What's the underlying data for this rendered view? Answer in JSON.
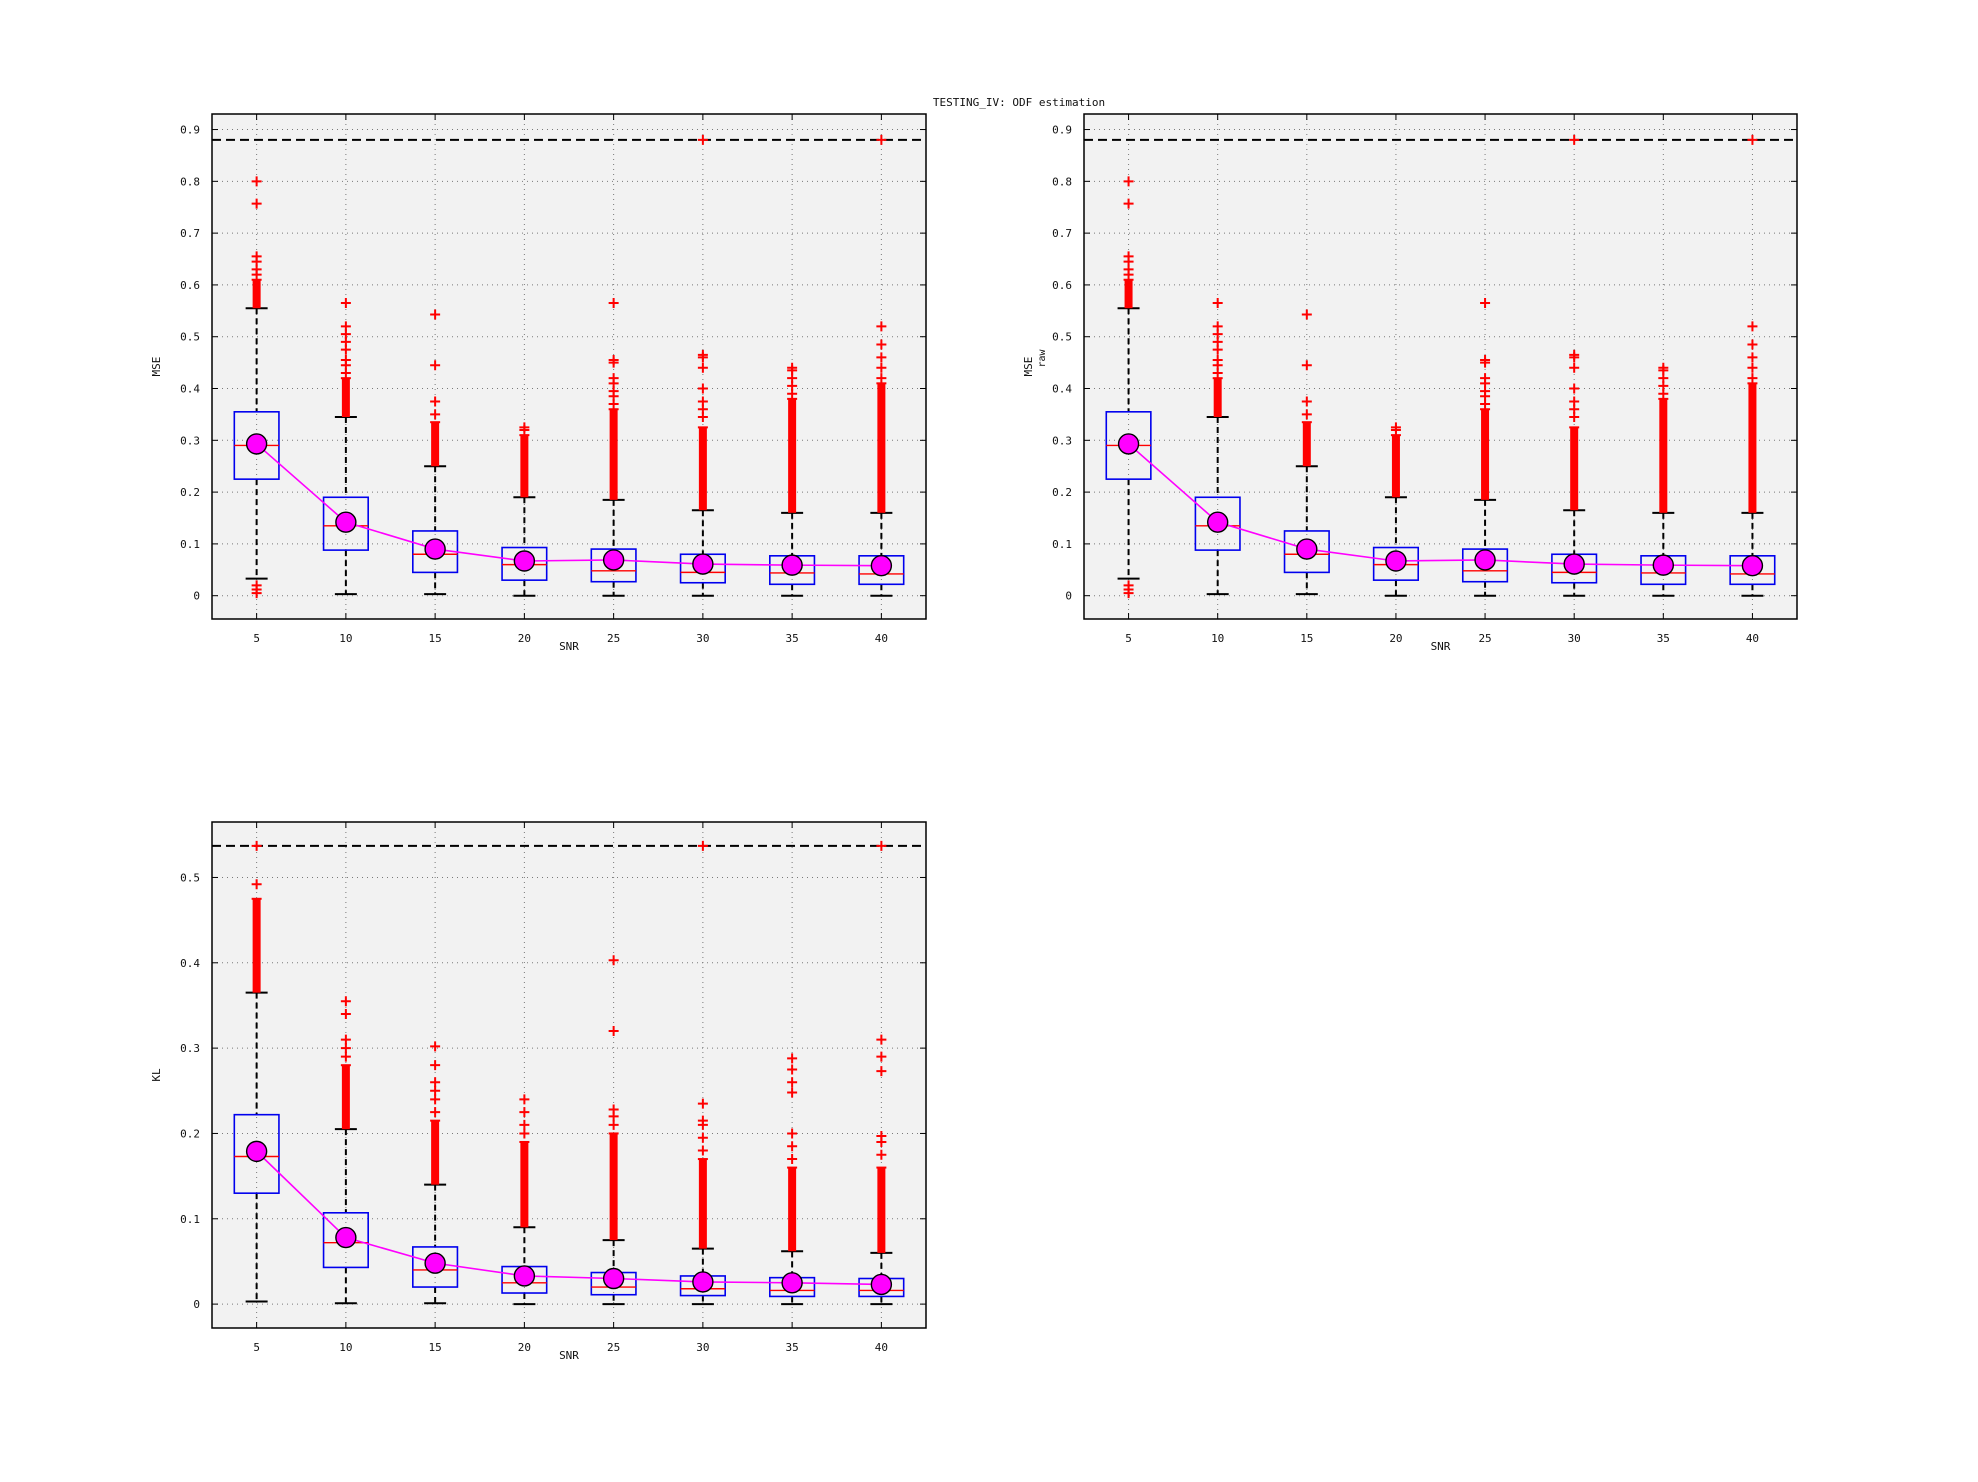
{
  "figure": {
    "title": "TESTING_IV: ODF estimation"
  },
  "chart_data": [
    {
      "type": "box",
      "xlabel": "SNR",
      "ylabel": "MSE",
      "ylabel_sub": "",
      "ylim": [
        -0.045,
        0.93
      ],
      "yticks": [
        0,
        0.1,
        0.2,
        0.3,
        0.4,
        0.5,
        0.6,
        0.7,
        0.8,
        0.9
      ],
      "ytick_labels": [
        "0",
        "0.1",
        "0.2",
        "0.3",
        "0.4",
        "0.5",
        "0.6",
        "0.7",
        "0.8",
        "0.9"
      ],
      "reference_line": 0.88,
      "grid": true,
      "categories": [
        "5",
        "10",
        "15",
        "20",
        "25",
        "30",
        "35",
        "40"
      ],
      "boxes": [
        {
          "min": 0.033,
          "q1": 0.225,
          "median": 0.29,
          "q3": 0.355,
          "max": 0.555,
          "mean": 0.293
        },
        {
          "min": 0.003,
          "q1": 0.088,
          "median": 0.135,
          "q3": 0.19,
          "max": 0.345,
          "mean": 0.142
        },
        {
          "min": 0.003,
          "q1": 0.045,
          "median": 0.08,
          "q3": 0.125,
          "max": 0.25,
          "mean": 0.09
        },
        {
          "min": 0.0,
          "q1": 0.03,
          "median": 0.06,
          "q3": 0.093,
          "max": 0.19,
          "mean": 0.067
        },
        {
          "min": 0.0,
          "q1": 0.027,
          "median": 0.048,
          "q3": 0.09,
          "max": 0.185,
          "mean": 0.069
        },
        {
          "min": 0.0,
          "q1": 0.025,
          "median": 0.045,
          "q3": 0.08,
          "max": 0.165,
          "mean": 0.061
        },
        {
          "min": 0.0,
          "q1": 0.022,
          "median": 0.044,
          "q3": 0.077,
          "max": 0.16,
          "mean": 0.059
        },
        {
          "min": 0.0,
          "q1": 0.022,
          "median": 0.042,
          "q3": 0.077,
          "max": 0.16,
          "mean": 0.058
        }
      ],
      "outliers": [
        {
          "dense": [
            [
              0.555,
              0.61
            ]
          ],
          "points": [
            0.005,
            0.012,
            0.02,
            0.62,
            0.63,
            0.645,
            0.655,
            0.757,
            0.8
          ]
        },
        {
          "dense": [
            [
              0.345,
              0.42
            ]
          ],
          "points": [
            0.43,
            0.445,
            0.455,
            0.475,
            0.49,
            0.505,
            0.52,
            0.565
          ]
        },
        {
          "dense": [
            [
              0.25,
              0.335
            ]
          ],
          "points": [
            0.35,
            0.375,
            0.445,
            0.543
          ]
        },
        {
          "dense": [
            [
              0.19,
              0.31
            ]
          ],
          "points": [
            0.32,
            0.325
          ]
        },
        {
          "dense": [
            [
              0.185,
              0.36
            ]
          ],
          "points": [
            0.37,
            0.385,
            0.395,
            0.41,
            0.42,
            0.45,
            0.455,
            0.565
          ]
        },
        {
          "dense": [
            [
              0.165,
              0.325
            ]
          ],
          "points": [
            0.345,
            0.36,
            0.375,
            0.4,
            0.44,
            0.46,
            0.465,
            0.88
          ]
        },
        {
          "dense": [
            [
              0.16,
              0.38
            ]
          ],
          "points": [
            0.39,
            0.405,
            0.42,
            0.435,
            0.44
          ]
        },
        {
          "dense": [
            [
              0.16,
              0.41
            ]
          ],
          "points": [
            0.42,
            0.44,
            0.46,
            0.485,
            0.52,
            0.88
          ]
        }
      ]
    },
    {
      "type": "box",
      "xlabel": "SNR",
      "ylabel": "MSE",
      "ylabel_sub": "raw",
      "ylim": [
        -0.045,
        0.93
      ],
      "yticks": [
        0,
        0.1,
        0.2,
        0.3,
        0.4,
        0.5,
        0.6,
        0.7,
        0.8,
        0.9
      ],
      "ytick_labels": [
        "0",
        "0.1",
        "0.2",
        "0.3",
        "0.4",
        "0.5",
        "0.6",
        "0.7",
        "0.8",
        "0.9"
      ],
      "reference_line": 0.88,
      "grid": true,
      "categories": [
        "5",
        "10",
        "15",
        "20",
        "25",
        "30",
        "35",
        "40"
      ],
      "boxes": [
        {
          "min": 0.033,
          "q1": 0.225,
          "median": 0.29,
          "q3": 0.355,
          "max": 0.555,
          "mean": 0.293
        },
        {
          "min": 0.003,
          "q1": 0.088,
          "median": 0.135,
          "q3": 0.19,
          "max": 0.345,
          "mean": 0.142
        },
        {
          "min": 0.003,
          "q1": 0.045,
          "median": 0.08,
          "q3": 0.125,
          "max": 0.25,
          "mean": 0.09
        },
        {
          "min": 0.0,
          "q1": 0.03,
          "median": 0.06,
          "q3": 0.093,
          "max": 0.19,
          "mean": 0.067
        },
        {
          "min": 0.0,
          "q1": 0.027,
          "median": 0.048,
          "q3": 0.09,
          "max": 0.185,
          "mean": 0.069
        },
        {
          "min": 0.0,
          "q1": 0.025,
          "median": 0.045,
          "q3": 0.08,
          "max": 0.165,
          "mean": 0.061
        },
        {
          "min": 0.0,
          "q1": 0.022,
          "median": 0.044,
          "q3": 0.077,
          "max": 0.16,
          "mean": 0.059
        },
        {
          "min": 0.0,
          "q1": 0.022,
          "median": 0.042,
          "q3": 0.077,
          "max": 0.16,
          "mean": 0.058
        }
      ],
      "outliers": [
        {
          "dense": [
            [
              0.555,
              0.61
            ]
          ],
          "points": [
            0.005,
            0.012,
            0.02,
            0.62,
            0.63,
            0.645,
            0.655,
            0.757,
            0.8
          ]
        },
        {
          "dense": [
            [
              0.345,
              0.42
            ]
          ],
          "points": [
            0.43,
            0.445,
            0.455,
            0.475,
            0.49,
            0.505,
            0.52,
            0.565
          ]
        },
        {
          "dense": [
            [
              0.25,
              0.335
            ]
          ],
          "points": [
            0.35,
            0.375,
            0.445,
            0.543
          ]
        },
        {
          "dense": [
            [
              0.19,
              0.31
            ]
          ],
          "points": [
            0.32,
            0.325
          ]
        },
        {
          "dense": [
            [
              0.185,
              0.36
            ]
          ],
          "points": [
            0.37,
            0.385,
            0.395,
            0.41,
            0.42,
            0.45,
            0.455,
            0.565
          ]
        },
        {
          "dense": [
            [
              0.165,
              0.325
            ]
          ],
          "points": [
            0.345,
            0.36,
            0.375,
            0.4,
            0.44,
            0.46,
            0.465,
            0.88
          ]
        },
        {
          "dense": [
            [
              0.16,
              0.38
            ]
          ],
          "points": [
            0.39,
            0.405,
            0.42,
            0.435,
            0.44
          ]
        },
        {
          "dense": [
            [
              0.16,
              0.41
            ]
          ],
          "points": [
            0.42,
            0.44,
            0.46,
            0.485,
            0.52,
            0.88
          ]
        }
      ]
    },
    {
      "type": "box",
      "xlabel": "SNR",
      "ylabel": "KL",
      "ylabel_sub": "",
      "ylim": [
        -0.028,
        0.565
      ],
      "yticks": [
        0,
        0.1,
        0.2,
        0.3,
        0.4,
        0.5
      ],
      "ytick_labels": [
        "0",
        "0.1",
        "0.2",
        "0.3",
        "0.4",
        "0.5"
      ],
      "reference_line": 0.537,
      "grid": true,
      "categories": [
        "5",
        "10",
        "15",
        "20",
        "25",
        "30",
        "35",
        "40"
      ],
      "boxes": [
        {
          "min": 0.003,
          "q1": 0.13,
          "median": 0.173,
          "q3": 0.222,
          "max": 0.365,
          "mean": 0.179
        },
        {
          "min": 0.001,
          "q1": 0.043,
          "median": 0.072,
          "q3": 0.107,
          "max": 0.205,
          "mean": 0.078
        },
        {
          "min": 0.001,
          "q1": 0.02,
          "median": 0.04,
          "q3": 0.067,
          "max": 0.14,
          "mean": 0.048
        },
        {
          "min": 0.0,
          "q1": 0.013,
          "median": 0.025,
          "q3": 0.044,
          "max": 0.09,
          "mean": 0.033
        },
        {
          "min": 0.0,
          "q1": 0.011,
          "median": 0.02,
          "q3": 0.037,
          "max": 0.075,
          "mean": 0.03
        },
        {
          "min": 0.0,
          "q1": 0.01,
          "median": 0.018,
          "q3": 0.033,
          "max": 0.065,
          "mean": 0.026
        },
        {
          "min": 0.0,
          "q1": 0.009,
          "median": 0.016,
          "q3": 0.031,
          "max": 0.062,
          "mean": 0.025
        },
        {
          "min": 0.0,
          "q1": 0.009,
          "median": 0.016,
          "q3": 0.03,
          "max": 0.06,
          "mean": 0.023
        }
      ],
      "outliers": [
        {
          "dense": [
            [
              0.365,
              0.475
            ]
          ],
          "points": [
            0.492,
            0.537
          ]
        },
        {
          "dense": [
            [
              0.205,
              0.28
            ]
          ],
          "points": [
            0.29,
            0.3,
            0.31,
            0.34,
            0.355
          ]
        },
        {
          "dense": [
            [
              0.14,
              0.215
            ]
          ],
          "points": [
            0.225,
            0.24,
            0.25,
            0.26,
            0.28,
            0.302
          ]
        },
        {
          "dense": [
            [
              0.09,
              0.19
            ]
          ],
          "points": [
            0.2,
            0.21,
            0.225,
            0.24
          ]
        },
        {
          "dense": [
            [
              0.075,
              0.2
            ]
          ],
          "points": [
            0.21,
            0.22,
            0.228,
            0.32,
            0.403
          ]
        },
        {
          "dense": [
            [
              0.065,
              0.17
            ]
          ],
          "points": [
            0.18,
            0.195,
            0.21,
            0.215,
            0.235,
            0.537
          ]
        },
        {
          "dense": [
            [
              0.062,
              0.16
            ]
          ],
          "points": [
            0.17,
            0.185,
            0.2,
            0.248,
            0.26,
            0.275,
            0.288
          ]
        },
        {
          "dense": [
            [
              0.06,
              0.16
            ]
          ],
          "points": [
            0.175,
            0.19,
            0.197,
            0.273,
            0.29,
            0.31,
            0.537
          ]
        }
      ]
    }
  ]
}
